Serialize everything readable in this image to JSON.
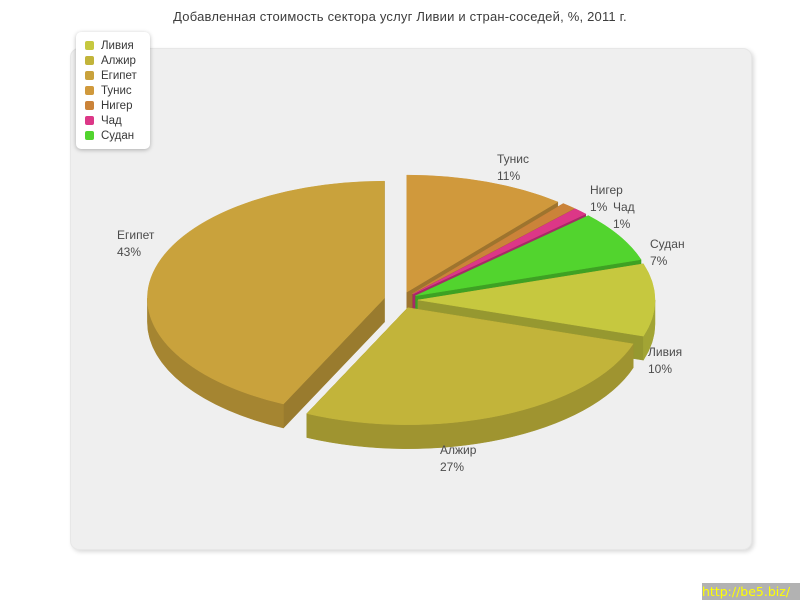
{
  "title": "Добавленная стоимость сектора услуг Ливии и стран-соседей, %, 2011 г.",
  "watermark": {
    "url_text": "http://be5.biz/",
    "bg": "#b2b2b2",
    "text_color": "#ffff00"
  },
  "chart_data": {
    "type": "pie",
    "style": "3d-exploded",
    "title": "Добавленная стоимость сектора услуг Ливии и стран-соседей, %, 2011 г.",
    "unit": "%",
    "legend_position": "top-left",
    "slices": [
      {
        "label": "Ливия",
        "value": 10,
        "pct_label": "10%",
        "color": "#c6c83f"
      },
      {
        "label": "Алжир",
        "value": 27,
        "pct_label": "27%",
        "color": "#c2b43a"
      },
      {
        "label": "Египет",
        "value": 43,
        "pct_label": "43%",
        "color": "#c9a23c"
      },
      {
        "label": "Тунис",
        "value": 11,
        "pct_label": "11%",
        "color": "#d0993c"
      },
      {
        "label": "Нигер",
        "value": 1,
        "pct_label": "1%",
        "color": "#cb8339"
      },
      {
        "label": "Чад",
        "value": 1,
        "pct_label": "1%",
        "color": "#dc3787"
      },
      {
        "label": "Судан",
        "value": 7,
        "pct_label": "7%",
        "color": "#52d42e"
      }
    ],
    "draw_sequence": [
      "Тунис",
      "Нигер",
      "Чад",
      "Судан",
      "Ливия",
      "Алжир",
      "Египет"
    ],
    "start_angle_deg": -90,
    "direction": "clockwise"
  }
}
